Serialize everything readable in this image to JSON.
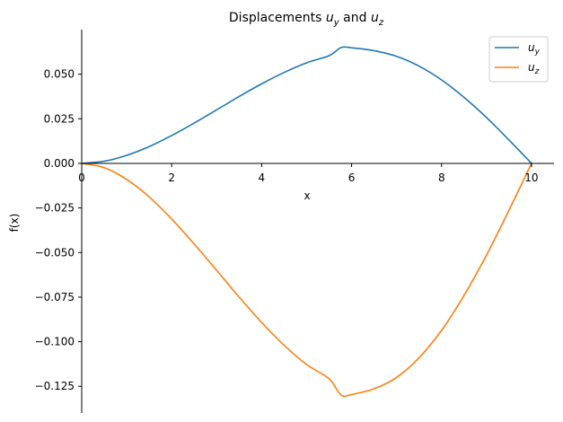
{
  "chart_data": {
    "type": "line",
    "title": {
      "prefix": "Displacements ",
      "sym1": "u",
      "sub1": "y",
      "middle": " and ",
      "sym2": "u",
      "sub2": "z"
    },
    "xlabel": "x",
    "ylabel": "f(x)",
    "xlim": [
      0,
      10.5
    ],
    "ylim": [
      -0.14,
      0.075
    ],
    "x_ticks": [
      0,
      2,
      4,
      6,
      8,
      10
    ],
    "x_tick_labels": [
      "0",
      "2",
      "4",
      "6",
      "8",
      "10"
    ],
    "y_ticks": [
      0.05,
      0.025,
      0.0,
      -0.025,
      -0.05,
      -0.075,
      -0.1,
      -0.125
    ],
    "y_tick_labels": [
      "0.050",
      "0.025",
      "0.000",
      "−0.025",
      "−0.050",
      "−0.075",
      "−0.100",
      "−0.125"
    ],
    "grid": false,
    "legend_position": "top-right",
    "x": [
      0,
      0.5,
      1,
      1.5,
      2,
      2.5,
      3,
      3.5,
      4,
      4.5,
      5,
      5.5,
      5.77,
      6,
      6.5,
      7,
      7.5,
      8,
      8.5,
      9,
      9.5,
      10
    ],
    "series": [
      {
        "name": "u_y",
        "legend_symbol": "u",
        "legend_subscript": "y",
        "color": "#1f77b4",
        "values": [
          0,
          0.0012,
          0.0045,
          0.0094,
          0.0156,
          0.0226,
          0.03,
          0.0375,
          0.0446,
          0.051,
          0.0564,
          0.0604,
          0.065,
          0.0648,
          0.0632,
          0.06,
          0.0545,
          0.0468,
          0.037,
          0.0257,
          0.0131,
          0
        ]
      },
      {
        "name": "u_z",
        "legend_symbol": "u",
        "legend_subscript": "z",
        "color": "#ff7f0e",
        "values": [
          0,
          -0.0024,
          -0.009,
          -0.0188,
          -0.0312,
          -0.0452,
          -0.06,
          -0.075,
          -0.0892,
          -0.102,
          -0.1128,
          -0.1208,
          -0.13,
          -0.1296,
          -0.1264,
          -0.12,
          -0.109,
          -0.0936,
          -0.074,
          -0.0514,
          -0.0262,
          0
        ]
      }
    ]
  }
}
